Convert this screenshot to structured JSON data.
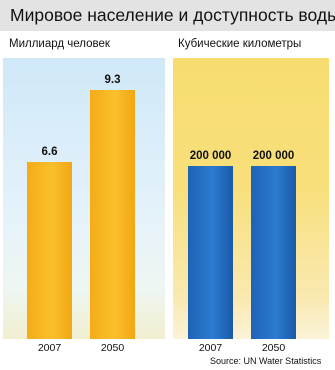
{
  "title": "Мировое население и доступность воды",
  "chart_data": [
    {
      "type": "bar",
      "ylabel": "Миллиард человек",
      "categories": [
        "2007",
        "2050"
      ],
      "values": [
        6.6,
        9.3
      ],
      "value_labels": [
        "6.6",
        "9.3"
      ],
      "ylim": [
        0,
        10.5
      ],
      "colors": {
        "bar": "#f9b61e",
        "panel": "#d8edf8"
      }
    },
    {
      "type": "bar",
      "ylabel": "Кубические километры",
      "categories": [
        "2007",
        "2050"
      ],
      "values": [
        200000,
        200000
      ],
      "value_labels": [
        "200 000",
        "200 000"
      ],
      "ylim": [
        0,
        325000
      ],
      "colors": {
        "bar": "#2570c4",
        "panel": "#f7dd70"
      }
    }
  ],
  "source": "Source: UN Water Statistics"
}
